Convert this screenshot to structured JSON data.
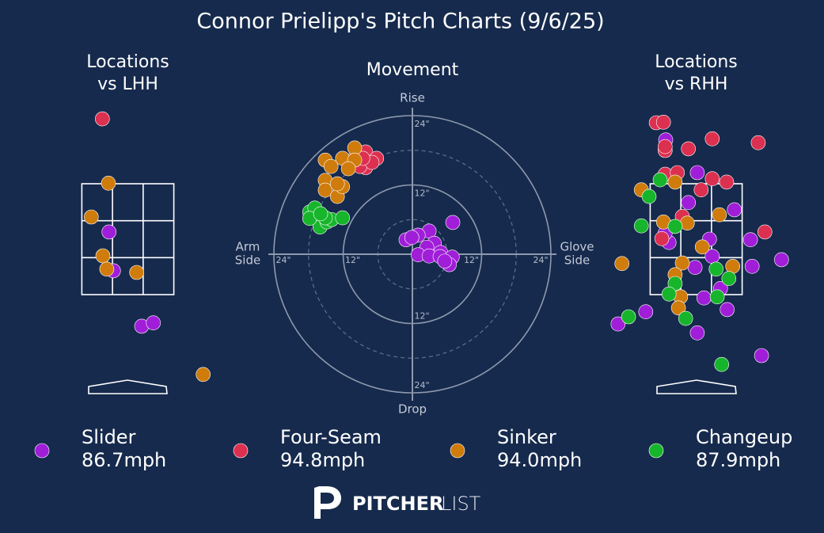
{
  "title": "Connor Prielipp's Pitch Charts (9/6/25)",
  "chart_data": [
    {
      "type": "location",
      "title": [
        "Locations",
        "vs LHH"
      ],
      "zone": {
        "x": [
          -0.83,
          0.83
        ],
        "z": [
          1.5,
          3.5
        ]
      },
      "series": [
        {
          "name": "Slider",
          "color": "#a01ed8",
          "x": [
            -0.34,
            -0.26,
            0.25,
            0.46
          ],
          "values": [
            2.63,
            1.93,
            0.93,
            0.99
          ]
        },
        {
          "name": "Four-Seam",
          "color": "#dc3050",
          "x": [
            -0.46
          ],
          "values": [
            4.67
          ]
        },
        {
          "name": "Sinker",
          "color": "#cf7c0c",
          "x": [
            -0.35,
            -0.66,
            -0.45,
            -0.38,
            0.16,
            1.36
          ],
          "values": [
            3.51,
            2.9,
            2.2,
            1.96,
            1.9,
            0.06
          ]
        },
        {
          "name": "Changeup",
          "color": "#17b52b",
          "x": [],
          "values": []
        }
      ]
    },
    {
      "type": "movement",
      "title": "Movement",
      "xlim": [
        -24,
        24
      ],
      "ylim": [
        -24,
        24
      ],
      "rings": [
        {
          "value": 12,
          "label": "12\""
        },
        {
          "value": 24,
          "label": "24\""
        }
      ],
      "minor_rings": [
        6,
        18
      ],
      "axis_labels": {
        "top": "Rise",
        "bottom": "Drop",
        "left": [
          "Arm",
          "Side"
        ],
        "right": [
          "Glove",
          "Side"
        ]
      },
      "series": [
        {
          "name": "Slider",
          "color": "#a01ed8",
          "x": [
            7.0,
            2.9,
            1.0,
            -1.1,
            -0.1,
            3.8,
            2.5,
            4.9,
            1.0,
            2.9,
            4.8,
            6.9,
            6.4,
            5.6
          ],
          "values": [
            5.5,
            4.0,
            3.3,
            2.5,
            2.9,
            1.9,
            1.2,
            0.3,
            -0.1,
            -0.3,
            -0.4,
            -0.5,
            -1.8,
            -1.2
          ]
        },
        {
          "name": "Four-Seam",
          "color": "#dc3050",
          "x": [
            -8.1,
            -6.2,
            -8.1,
            -9.1,
            -7.0,
            -10.0,
            -8.6
          ],
          "values": [
            17.7,
            16.6,
            15.0,
            15.2,
            15.9,
            16.6,
            16.6
          ]
        },
        {
          "name": "Sinker",
          "color": "#cf7c0c",
          "x": [
            -15.1,
            -14.1,
            -12.1,
            -10.0,
            -10.0,
            -11.1,
            -15.1,
            -15.1,
            -13.0,
            -12.1,
            -13.0
          ],
          "values": [
            16.3,
            15.2,
            16.6,
            18.4,
            16.3,
            14.8,
            12.8,
            11.1,
            10.0,
            11.7,
            12.2
          ]
        },
        {
          "name": "Changeup",
          "color": "#17b52b",
          "x": [
            -17.8,
            -16.9,
            -16.0,
            -14.8,
            -14.0,
            -15.1,
            -12.1,
            -17.8,
            -15.9
          ],
          "values": [
            7.3,
            8.0,
            4.7,
            5.6,
            6.0,
            6.3,
            6.3,
            6.2,
            7.0
          ]
        }
      ]
    },
    {
      "type": "location",
      "title": [
        "Locations",
        "vs RHH"
      ],
      "zone": {
        "x": [
          -0.83,
          0.83
        ],
        "z": [
          1.5,
          3.5
        ]
      },
      "series": [
        {
          "name": "Slider",
          "color": "#a01ed8",
          "x": [
            -0.55,
            0.02,
            -0.14,
            0.69,
            0.24,
            -0.49,
            -0.56,
            0.98,
            1.54,
            0.29,
            -0.02,
            1.01,
            0.44,
            0.14,
            0.56,
            -0.91,
            -1.41,
            0.02,
            1.18
          ],
          "values": [
            4.29,
            3.7,
            3.16,
            3.03,
            2.5,
            2.44,
            2.61,
            2.49,
            2.13,
            2.19,
            1.99,
            2.01,
            1.61,
            1.44,
            1.23,
            1.19,
            0.97,
            0.81,
            0.4
          ]
        },
        {
          "name": "Four-Seam",
          "color": "#dc3050",
          "x": [
            -0.72,
            -0.59,
            -0.56,
            -0.56,
            -0.14,
            0.29,
            1.12,
            -0.56,
            -0.34,
            0.29,
            0.55,
            0.09,
            -0.25,
            1.24,
            -0.62
          ],
          "values": [
            4.6,
            4.61,
            4.1,
            4.17,
            4.13,
            4.31,
            4.24,
            3.67,
            3.7,
            3.59,
            3.53,
            3.39,
            2.91,
            2.63,
            2.51
          ]
        },
        {
          "name": "Sinker",
          "color": "#cf7c0c",
          "x": [
            -0.99,
            -0.38,
            0.42,
            -0.59,
            -0.16,
            0.11,
            -1.34,
            -0.25,
            -0.38,
            0.66,
            -0.28,
            -0.32
          ],
          "values": [
            3.39,
            3.53,
            2.94,
            2.81,
            2.79,
            2.36,
            2.06,
            2.07,
            1.86,
            2.01,
            1.46,
            1.26
          ]
        },
        {
          "name": "Changeup",
          "color": "#17b52b",
          "x": [
            -0.65,
            -0.85,
            -0.99,
            -0.38,
            0.36,
            0.59,
            -0.38,
            -0.49,
            0.38,
            -0.19,
            -1.22,
            0.46
          ],
          "values": [
            3.57,
            3.27,
            2.74,
            2.73,
            1.96,
            1.79,
            1.7,
            1.51,
            1.46,
            1.07,
            1.1,
            0.24
          ]
        }
      ]
    }
  ],
  "legend": [
    {
      "name": "Slider",
      "color": "#a01ed8",
      "speed": 86.7,
      "speed_label": "86.7mph"
    },
    {
      "name": "Four-Seam",
      "color": "#dc3050",
      "speed": 94.8,
      "speed_label": "94.8mph"
    },
    {
      "name": "Sinker",
      "color": "#cf7c0c",
      "speed": 94.0,
      "speed_label": "94.0mph"
    },
    {
      "name": "Changeup",
      "color": "#17b52b",
      "speed": 87.9,
      "speed_label": "87.9mph"
    }
  ],
  "logo": {
    "bold": "PITCHER",
    "light": "LIST"
  }
}
